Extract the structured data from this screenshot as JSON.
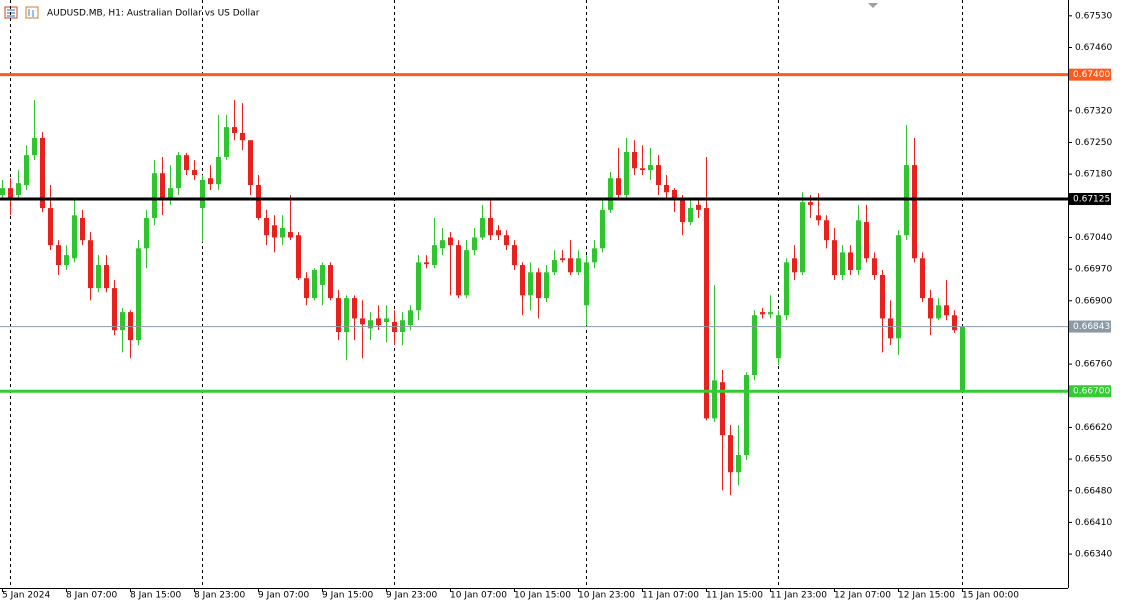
{
  "chart_data": {
    "type": "candlestick",
    "title": "AUDUSD.MB, H1:  Australian Dollar vs US Dollar",
    "up_color": "#2fc52f",
    "down_color": "#e8201e",
    "ylim": [
      0.66265,
      0.67565
    ],
    "yticks": [
      {
        "value": 0.6753,
        "label": "0.67530"
      },
      {
        "value": 0.6746,
        "label": "0.67460"
      },
      {
        "value": 0.6732,
        "label": "0.67320"
      },
      {
        "value": 0.6725,
        "label": "0.67250"
      },
      {
        "value": 0.6718,
        "label": "0.67180"
      },
      {
        "value": 0.6704,
        "label": "0.67040"
      },
      {
        "value": 0.6697,
        "label": "0.66970"
      },
      {
        "value": 0.669,
        "label": "0.66900"
      },
      {
        "value": 0.6676,
        "label": "0.66760"
      },
      {
        "value": 0.6662,
        "label": "0.66620"
      },
      {
        "value": 0.6655,
        "label": "0.66550"
      },
      {
        "value": 0.6648,
        "label": "0.66480"
      },
      {
        "value": 0.6641,
        "label": "0.66410"
      },
      {
        "value": 0.6634,
        "label": "0.66340"
      }
    ],
    "levels": [
      {
        "value": 0.674,
        "label": "0.67400",
        "color": "#ff5a1e"
      },
      {
        "value": 0.67125,
        "label": "0.67125",
        "color": "#000000"
      },
      {
        "value": 0.66843,
        "label": "0.66843",
        "color": "#8c9aa6"
      },
      {
        "value": 0.667,
        "label": "0.66700",
        "color": "#33cc33"
      }
    ],
    "categories": [
      "5 Jan 2024",
      null,
      null,
      null,
      null,
      null,
      null,
      null,
      "8 Jan 07:00",
      null,
      null,
      null,
      null,
      null,
      null,
      null,
      "8 Jan 15:00",
      null,
      null,
      null,
      null,
      null,
      null,
      null,
      "8 Jan 23:00",
      null,
      null,
      null,
      null,
      null,
      null,
      null,
      "9 Jan 07:00",
      null,
      null,
      null,
      null,
      null,
      null,
      null,
      "9 Jan 15:00",
      null,
      null,
      null,
      null,
      null,
      null,
      null,
      "9 Jan 23:00",
      null,
      null,
      null,
      null,
      null,
      null,
      null,
      "10 Jan 07:00",
      null,
      null,
      null,
      null,
      null,
      null,
      null,
      "10 Jan 15:00",
      null,
      null,
      null,
      null,
      null,
      null,
      null,
      "10 Jan 23:00",
      null,
      null,
      null,
      null,
      null,
      null,
      null,
      "11 Jan 07:00",
      null,
      null,
      null,
      null,
      null,
      null,
      null,
      "11 Jan 15:00",
      null,
      null,
      null,
      null,
      null,
      null,
      null,
      "11 Jan 23:00",
      null,
      null,
      null,
      null,
      null,
      null,
      null,
      "12 Jan 07:00",
      null,
      null,
      null,
      null,
      null,
      null,
      null,
      "12 Jan 15:00",
      null,
      null,
      null,
      null,
      null,
      null,
      null,
      "15 Jan 00:00"
    ],
    "open": [
      0.67134,
      0.67149,
      0.67134,
      0.67156,
      0.67222,
      0.6726,
      0.67105,
      0.67023,
      0.66979,
      0.66994,
      0.67083,
      0.67034,
      0.66928,
      0.66979,
      0.66928,
      0.66835,
      0.66875,
      0.66813,
      0.67016,
      0.67083,
      0.67182,
      0.67123,
      0.67149,
      0.67222,
      0.67189,
      0.67105,
      0.67171,
      0.67158,
      0.67218,
      0.67284,
      0.67271,
      0.67255,
      0.67156,
      0.67083,
      0.67067,
      0.6704,
      0.67052,
      0.67045,
      0.6695,
      0.66906,
      0.66935,
      0.66979,
      0.66906,
      0.66831,
      0.66906,
      0.66861,
      0.66839,
      0.66861,
      0.66853,
      0.66853,
      0.66831,
      0.66846,
      0.66879,
      0.66985,
      0.66979,
      0.67016,
      0.6704,
      0.67023,
      0.66912,
      0.67012,
      0.6704,
      0.67083,
      0.67056,
      0.67045,
      0.67023,
      0.66979,
      0.66912,
      0.66963,
      0.66906,
      0.66963,
      0.66994,
      0.66994,
      0.66963,
      0.6689,
      0.66985,
      0.67016,
      0.67101,
      0.67171,
      0.67134,
      0.67229,
      0.67193,
      0.67189,
      0.672,
      0.67156,
      0.67145,
      0.67123,
      0.67074,
      0.67112,
      0.67105,
      0.6664,
      0.6672,
      0.66603,
      0.66521,
      0.66559,
      0.66736,
      0.66875,
      0.6687,
      0.66773,
      0.66868,
      0.66994,
      0.66963,
      0.67118,
      0.67089,
      0.67078,
      0.67034,
      0.66957,
      0.67007,
      0.66968,
      0.67074,
      0.66994,
      0.66957,
      0.66861,
      0.66817,
      0.67045,
      0.672,
      0.66994,
      0.66906,
      0.66861,
      0.6689,
      0.66868,
      0.66702
    ],
    "high": [
      0.67167,
      0.67171,
      0.67189,
      0.67244,
      0.67344,
      0.67273,
      0.67156,
      0.67034,
      0.67023,
      0.67123,
      0.67101,
      0.67052,
      0.67001,
      0.67001,
      0.66946,
      0.66884,
      0.66879,
      0.67034,
      0.67101,
      0.67211,
      0.67218,
      0.672,
      0.67229,
      0.67227,
      0.67211,
      0.67178,
      0.672,
      0.67311,
      0.67311,
      0.67344,
      0.67337,
      0.67255,
      0.67178,
      0.67101,
      0.67089,
      0.67089,
      0.67134,
      0.67052,
      0.66963,
      0.66972,
      0.66985,
      0.66985,
      0.66924,
      0.66912,
      0.66912,
      0.66901,
      0.66875,
      0.6689,
      0.6689,
      0.66879,
      0.66875,
      0.6689,
      0.67001,
      0.67001,
      0.67083,
      0.67061,
      0.67052,
      0.67034,
      0.67034,
      0.67061,
      0.67112,
      0.67123,
      0.67067,
      0.67056,
      0.67034,
      0.66985,
      0.66985,
      0.66972,
      0.66979,
      0.67012,
      0.67012,
      0.67034,
      0.67012,
      0.67001,
      0.67034,
      0.67123,
      0.67185,
      0.67238,
      0.6726,
      0.67255,
      0.67244,
      0.67238,
      0.67222,
      0.67178,
      0.67149,
      0.67134,
      0.67123,
      0.67123,
      0.67218,
      0.66935,
      0.66747,
      0.66625,
      0.66625,
      0.66742,
      0.66879,
      0.66884,
      0.66912,
      0.66879,
      0.66994,
      0.67023,
      0.6714,
      0.67134,
      0.67138,
      0.67089,
      0.67061,
      0.67023,
      0.67023,
      0.67112,
      0.67112,
      0.67007,
      0.66968,
      0.66901,
      0.67056,
      0.67289,
      0.6726,
      0.67007,
      0.66924,
      0.66906,
      0.66946,
      0.66879,
      0.66842
    ],
    "low": [
      0.67123,
      0.67089,
      0.67123,
      0.67145,
      0.67211,
      0.67096,
      0.67012,
      0.66957,
      0.66968,
      0.66985,
      0.67023,
      0.66901,
      0.66919,
      0.66919,
      0.66824,
      0.66786,
      0.66773,
      0.66802,
      0.66972,
      0.67067,
      0.67089,
      0.67112,
      0.67134,
      0.67178,
      0.67167,
      0.6703,
      0.67145,
      0.67145,
      0.67211,
      0.67255,
      0.67233,
      0.67134,
      0.67078,
      0.67023,
      0.67007,
      0.67023,
      0.67034,
      0.66946,
      0.6689,
      0.66901,
      0.6689,
      0.66901,
      0.66813,
      0.66769,
      0.66813,
      0.66773,
      0.66813,
      0.66835,
      0.66808,
      0.66802,
      0.66802,
      0.66835,
      0.66857,
      0.66972,
      0.66972,
      0.67001,
      0.66912,
      0.66906,
      0.66906,
      0.67001,
      0.67034,
      0.67034,
      0.67034,
      0.67012,
      0.66968,
      0.66868,
      0.66879,
      0.66861,
      0.66897,
      0.66957,
      0.66985,
      0.66957,
      0.66957,
      0.66846,
      0.66972,
      0.67007,
      0.67094,
      0.67127,
      0.67127,
      0.67178,
      0.67178,
      0.67167,
      0.67134,
      0.67127,
      0.67096,
      0.67045,
      0.67067,
      0.67083,
      0.66636,
      0.66632,
      0.66481,
      0.6647,
      0.66492,
      0.66548,
      0.66724,
      0.66861,
      0.66861,
      0.66758,
      0.66857,
      0.66946,
      0.66957,
      0.67083,
      0.67067,
      0.67016,
      0.66946,
      0.66946,
      0.66957,
      0.66957,
      0.66985,
      0.66946,
      0.66786,
      0.66802,
      0.6678,
      0.67034,
      0.66985,
      0.66897,
      0.66824,
      0.66857,
      0.66857,
      0.66829,
      0.66698
    ],
    "close": [
      0.67149,
      0.67127,
      0.6716,
      0.67222,
      0.6726,
      0.67105,
      0.67023,
      0.66979,
      0.67001,
      0.67089,
      0.67034,
      0.66928,
      0.66979,
      0.66928,
      0.66835,
      0.66875,
      0.66813,
      0.67016,
      0.67083,
      0.67182,
      0.67127,
      0.67149,
      0.67222,
      0.67189,
      0.67178,
      0.67167,
      0.67158,
      0.67218,
      0.67284,
      0.67271,
      0.67255,
      0.67156,
      0.67083,
      0.67045,
      0.6704,
      0.67061,
      0.6704,
      0.6695,
      0.66906,
      0.66968,
      0.66979,
      0.66906,
      0.66831,
      0.66906,
      0.66861,
      0.66848,
      0.66857,
      0.66846,
      0.66861,
      0.66831,
      0.66857,
      0.66879,
      0.66985,
      0.66981,
      0.67023,
      0.67034,
      0.67023,
      0.66912,
      0.67012,
      0.6704,
      0.67083,
      0.67045,
      0.67045,
      0.67023,
      0.66979,
      0.66912,
      0.66963,
      0.66906,
      0.66963,
      0.6699,
      0.6699,
      0.66963,
      0.66994,
      0.66985,
      0.67016,
      0.67101,
      0.67171,
      0.67134,
      0.67229,
      0.67193,
      0.67189,
      0.672,
      0.67156,
      0.6714,
      0.67123,
      0.67074,
      0.67105,
      0.67101,
      0.6664,
      0.66724,
      0.66603,
      0.66521,
      0.66559,
      0.66736,
      0.66868,
      0.6687,
      0.66875,
      0.66868,
      0.66985,
      0.66963,
      0.67118,
      0.67112,
      0.67078,
      0.67034,
      0.66957,
      0.67007,
      0.66968,
      0.67078,
      0.66994,
      0.66957,
      0.66861,
      0.66817,
      0.67045,
      0.672,
      0.66994,
      0.66906,
      0.66861,
      0.6689,
      0.66868,
      0.66835,
      0.66843
    ]
  }
}
